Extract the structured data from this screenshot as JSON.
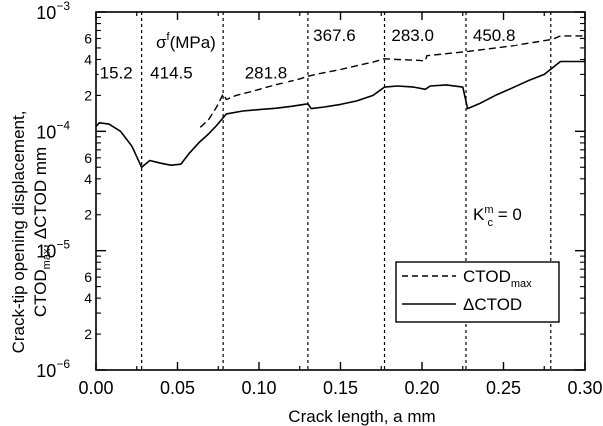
{
  "chart_data": {
    "type": "line",
    "title": "",
    "xlabel": "Crack length, a mm",
    "ylabel_line1": "Crack-tip opening displacement,",
    "ylabel_line2": {
      "p1": "CTOD",
      "sub": "max",
      "p2": ",  ΔCTOD mm"
    },
    "xlim": [
      0,
      0.3
    ],
    "ylim": [
      1e-06,
      0.001
    ],
    "yscale": "log",
    "grid": false,
    "x_ticks": [
      0.0,
      0.05,
      0.1,
      0.15,
      0.2,
      0.25,
      0.3
    ],
    "x_tick_labels": [
      "0.00",
      "0.05",
      "0.10",
      "0.15",
      "0.20",
      "0.25",
      "0.30"
    ],
    "y_major_ticks": [
      {
        "value": 1e-06,
        "base": "10",
        "exp": "−6"
      },
      {
        "value": 1e-05,
        "base": "10",
        "exp": "−5"
      },
      {
        "value": 0.0001,
        "base": "10",
        "exp": "−4"
      },
      {
        "value": 0.001,
        "base": "10",
        "exp": "−3"
      }
    ],
    "y_minor_labels": [
      {
        "value": 2e-06,
        "label": "2"
      },
      {
        "value": 4e-06,
        "label": "4"
      },
      {
        "value": 6e-06,
        "label": "6"
      },
      {
        "value": 2e-05,
        "label": "2"
      },
      {
        "value": 4e-05,
        "label": "4"
      },
      {
        "value": 6e-05,
        "label": "6"
      },
      {
        "value": 0.0002,
        "label": "2"
      },
      {
        "value": 0.0004,
        "label": "4"
      },
      {
        "value": 0.0006,
        "label": "6"
      }
    ],
    "stress_header": {
      "p1": "σ",
      "sup": "f",
      "p2": "(MPa)"
    },
    "kc_annotation": {
      "p1": "K",
      "sub": "c",
      "sup": "m",
      "p2": " = 0"
    },
    "segment_boundaries": [
      0.028,
      0.078,
      0.13,
      0.177,
      0.227,
      0.279
    ],
    "segment_stresses": [
      {
        "label": "15.2",
        "x": 0.001,
        "y": 0.00031
      },
      {
        "label": "414.5",
        "x": 0.032,
        "y": 0.00031
      },
      {
        "label": "281.8",
        "x": 0.09,
        "y": 0.00031
      },
      {
        "label": "367.6",
        "x": 0.132,
        "y": 0.00064
      },
      {
        "label": "283.0",
        "x": 0.18,
        "y": 0.00064
      },
      {
        "label": "450.8",
        "x": 0.23,
        "y": 0.00064
      }
    ],
    "legend": {
      "position": "bottom-right",
      "entries": [
        {
          "p1": "CTOD",
          "sub": "max",
          "style": "dashed"
        },
        {
          "p1": "ΔCTOD",
          "sub": "",
          "style": "solid"
        }
      ]
    },
    "series": [
      {
        "name": "CTODmax",
        "style": "dashed",
        "points": [
          [
            0.064,
            0.000108
          ],
          [
            0.069,
            0.000125
          ],
          [
            0.074,
            0.00016
          ],
          [
            0.078,
            0.000205
          ],
          [
            0.08,
            0.000185
          ],
          [
            0.086,
            0.0002
          ],
          [
            0.095,
            0.000215
          ],
          [
            0.105,
            0.000235
          ],
          [
            0.115,
            0.000255
          ],
          [
            0.125,
            0.000275
          ],
          [
            0.13,
            0.00029
          ],
          [
            0.14,
            0.00031
          ],
          [
            0.15,
            0.00033
          ],
          [
            0.16,
            0.000355
          ],
          [
            0.17,
            0.00038
          ],
          [
            0.177,
            0.000405
          ],
          [
            0.185,
            0.0004
          ],
          [
            0.195,
            0.000395
          ],
          [
            0.202,
            0.00039
          ],
          [
            0.203,
            0.00043
          ],
          [
            0.21,
            0.00044
          ],
          [
            0.22,
            0.000455
          ],
          [
            0.227,
            0.000465
          ],
          [
            0.24,
            0.00049
          ],
          [
            0.255,
            0.00052
          ],
          [
            0.27,
            0.00056
          ],
          [
            0.28,
            0.00059
          ],
          [
            0.285,
            0.00063
          ],
          [
            0.3,
            0.00063
          ]
        ]
      },
      {
        "name": "ΔCTOD",
        "style": "solid",
        "points": [
          [
            0.0,
            0.00011
          ],
          [
            0.002,
            0.000118
          ],
          [
            0.008,
            0.000115
          ],
          [
            0.015,
            0.0001
          ],
          [
            0.022,
            7.5e-05
          ],
          [
            0.028,
            5e-05
          ],
          [
            0.033,
            5.7e-05
          ],
          [
            0.04,
            5.4e-05
          ],
          [
            0.046,
            5.2e-05
          ],
          [
            0.052,
            5.3e-05
          ],
          [
            0.057,
            6.5e-05
          ],
          [
            0.063,
            8e-05
          ],
          [
            0.069,
            9.5e-05
          ],
          [
            0.074,
            0.000112
          ],
          [
            0.078,
            0.00013
          ],
          [
            0.08,
            0.00014
          ],
          [
            0.09,
            0.000148
          ],
          [
            0.1,
            0.000152
          ],
          [
            0.11,
            0.000156
          ],
          [
            0.12,
            0.000162
          ],
          [
            0.13,
            0.00017
          ],
          [
            0.132,
            0.000155
          ],
          [
            0.14,
            0.00016
          ],
          [
            0.15,
            0.000168
          ],
          [
            0.16,
            0.00018
          ],
          [
            0.17,
            0.0002
          ],
          [
            0.177,
            0.000235
          ],
          [
            0.185,
            0.00024
          ],
          [
            0.195,
            0.000235
          ],
          [
            0.202,
            0.000225
          ],
          [
            0.205,
            0.00024
          ],
          [
            0.215,
            0.000245
          ],
          [
            0.225,
            0.000235
          ],
          [
            0.228,
            0.000155
          ],
          [
            0.235,
            0.00017
          ],
          [
            0.245,
            0.0002
          ],
          [
            0.255,
            0.00023
          ],
          [
            0.265,
            0.000265
          ],
          [
            0.275,
            0.0003
          ],
          [
            0.28,
            0.00034
          ],
          [
            0.285,
            0.000385
          ],
          [
            0.3,
            0.000385
          ]
        ]
      }
    ]
  }
}
